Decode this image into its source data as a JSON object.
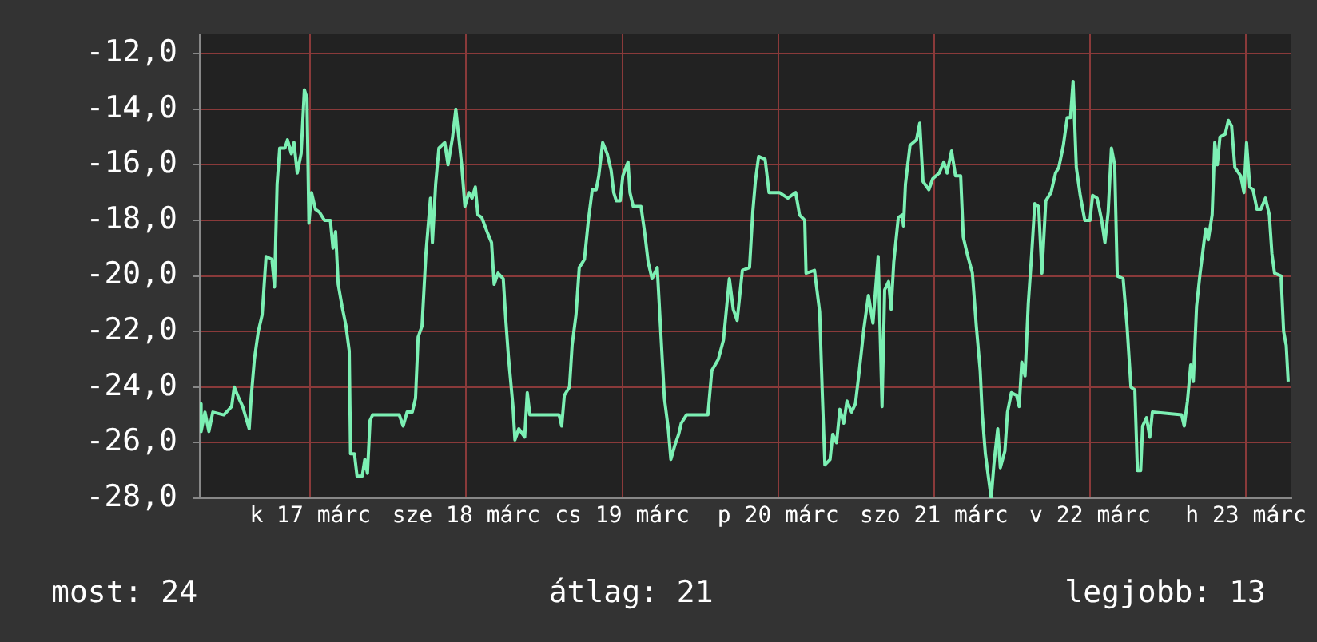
{
  "chart_data": {
    "type": "line",
    "x": [
      "--03-16T07:00",
      "--03-16T07:12",
      "--03-16T07:48",
      "--03-16T08:24",
      "--03-16T09:00",
      "--03-16T10:42",
      "--03-16T11:54",
      "--03-16T12:18",
      "--03-16T13:00",
      "--03-16T13:36",
      "--03-16T14:36",
      "--03-16T14:54",
      "--03-16T15:24",
      "--03-16T16:00",
      "--03-16T16:36",
      "--03-16T17:12",
      "--03-16T18:06",
      "--03-16T18:30",
      "--03-16T18:54",
      "--03-16T19:18",
      "--03-16T20:06",
      "--03-16T20:30",
      "--03-16T21:06",
      "--03-16T21:30",
      "--03-16T22:00",
      "--03-16T22:36",
      "--03-16T23:06",
      "--03-16T23:30",
      "--03-16T23:48",
      "--03-17T00:12",
      "--03-17T00:48",
      "--03-17T01:24",
      "--03-17T02:12",
      "--03-17T03:06",
      "--03-17T03:30",
      "--03-17T03:54",
      "--03-17T04:18",
      "--03-17T04:54",
      "--03-17T05:30",
      "--03-17T06:00",
      "--03-17T06:12",
      "--03-17T06:48",
      "--03-17T07:12",
      "--03-17T08:00",
      "--03-17T08:24",
      "--03-17T08:48",
      "--03-17T09:12",
      "--03-17T09:36",
      "--03-17T13:42",
      "--03-17T14:18",
      "--03-17T14:54",
      "--03-17T15:42",
      "--03-17T16:12",
      "--03-17T16:36",
      "--03-17T17:12",
      "--03-17T17:48",
      "--03-17T18:30",
      "--03-17T18:48",
      "--03-17T19:18",
      "--03-17T19:48",
      "--03-17T20:42",
      "--03-17T21:12",
      "--03-17T21:54",
      "--03-17T22:24",
      "--03-17T22:54",
      "--03-17T23:18",
      "--03-17T23:48",
      "--03-18T00:24",
      "--03-18T00:54",
      "--03-18T01:24",
      "--03-18T01:48",
      "--03-18T02:24",
      "--03-18T03:12",
      "--03-18T03:54",
      "--03-18T04:18",
      "--03-18T04:54",
      "--03-18T05:42",
      "--03-18T06:06",
      "--03-18T06:30",
      "--03-18T07:12",
      "--03-18T07:30",
      "--03-18T08:06",
      "--03-18T09:00",
      "--03-18T09:24",
      "--03-18T09:48",
      "--03-18T14:18",
      "--03-18T14:42",
      "--03-18T15:06",
      "--03-18T15:54",
      "--03-18T16:18",
      "--03-18T16:54",
      "--03-18T17:24",
      "--03-18T18:12",
      "--03-18T18:48",
      "--03-18T19:24",
      "--03-18T20:00",
      "--03-18T20:24",
      "--03-18T21:00",
      "--03-18T21:42",
      "--03-18T22:18",
      "--03-18T22:42",
      "--03-18T23:06",
      "--03-18T23:42",
      "--03-19T00:06",
      "--03-19T00:54",
      "--03-19T01:12",
      "--03-19T01:42",
      "--03-19T02:54",
      "--03-19T03:30",
      "--03-19T04:00",
      "--03-19T04:36",
      "--03-19T05:24",
      "--03-19T05:48",
      "--03-19T06:30",
      "--03-19T07:06",
      "--03-19T07:30",
      "--03-19T08:06",
      "--03-19T08:42",
      "--03-19T09:06",
      "--03-19T09:54",
      "--03-19T10:18",
      "--03-19T13:12",
      "--03-19T13:48",
      "--03-19T14:48",
      "--03-19T15:36",
      "--03-19T16:30",
      "--03-19T17:06",
      "--03-19T17:42",
      "--03-19T18:30",
      "--03-19T19:36",
      "--03-19T20:06",
      "--03-19T20:30",
      "--03-19T21:00",
      "--03-19T22:00",
      "--03-19T22:36",
      "--03-20T00:12",
      "--03-20T01:30",
      "--03-20T02:42",
      "--03-20T03:18",
      "--03-20T04:06",
      "--03-20T04:18",
      "--03-20T05:36",
      "--03-20T06:24",
      "--03-20T06:48",
      "--03-20T07:12",
      "--03-20T08:00",
      "--03-20T08:24",
      "--03-20T09:00",
      "--03-20T09:30",
      "--03-20T10:06",
      "--03-20T10:36",
      "--03-20T11:18",
      "--03-20T11:54",
      "--03-20T12:30",
      "--03-20T13:12",
      "--03-20T13:54",
      "--03-20T14:36",
      "--03-20T15:24",
      "--03-20T16:00",
      "--03-20T16:24",
      "--03-20T17:00",
      "--03-20T17:24",
      "--03-20T17:48",
      "--03-20T18:30",
      "--03-20T19:06",
      "--03-20T19:18",
      "--03-20T19:36",
      "--03-20T20:18",
      "--03-20T21:18",
      "--03-20T21:48",
      "--03-20T22:18",
      "--03-20T23:12",
      "--03-20T23:48",
      "--03-21T00:48",
      "--03-21T01:30",
      "--03-21T02:00",
      "--03-21T02:42",
      "--03-21T03:18",
      "--03-21T04:06",
      "--03-21T04:30",
      "--03-21T05:06",
      "--03-21T05:54",
      "--03-21T06:30",
      "--03-21T07:06",
      "--03-21T07:24",
      "--03-21T07:54",
      "--03-21T08:24",
      "--03-21T08:48",
      "--03-21T09:12",
      "--03-21T09:48",
      "--03-21T10:12",
      "--03-21T10:54",
      "--03-21T11:18",
      "--03-21T11:54",
      "--03-21T12:42",
      "--03-21T13:06",
      "--03-21T13:30",
      "--03-21T14:00",
      "--03-21T14:30",
      "--03-21T15:00",
      "--03-21T15:30",
      "--03-21T16:06",
      "--03-21T16:36",
      "--03-21T17:12",
      "--03-21T18:00",
      "--03-21T18:42",
      "--03-21T19:12",
      "--03-21T19:54",
      "--03-21T20:30",
      "--03-21T21:00",
      "--03-21T21:24",
      "--03-21T21:54",
      "--03-21T22:30",
      "--03-21T23:12",
      "--03-22T00:00",
      "--03-22T00:24",
      "--03-22T01:06",
      "--03-22T01:48",
      "--03-22T02:18",
      "--03-22T02:48",
      "--03-22T03:18",
      "--03-22T03:48",
      "--03-22T04:12",
      "--03-22T05:06",
      "--03-22T05:42",
      "--03-22T06:18",
      "--03-22T06:54",
      "--03-22T07:18",
      "--03-22T07:48",
      "--03-22T08:06",
      "--03-22T08:42",
      "--03-22T09:12",
      "--03-22T09:36",
      "--03-22T14:06",
      "--03-22T14:30",
      "--03-22T15:00",
      "--03-22T15:30",
      "--03-22T15:54",
      "--03-22T16:24",
      "--03-22T16:54",
      "--03-22T17:48",
      "--03-22T18:12",
      "--03-22T18:48",
      "--03-22T19:12",
      "--03-22T19:36",
      "--03-22T20:00",
      "--03-22T20:48",
      "--03-22T21:18",
      "--03-22T21:48",
      "--03-22T22:18",
      "--03-22T23:12",
      "--03-22T23:42",
      "--03-23T00:06",
      "--03-23T00:36",
      "--03-23T01:06",
      "--03-23T01:42",
      "--03-23T02:18",
      "--03-23T03:00",
      "--03-23T03:36",
      "--03-23T04:00",
      "--03-23T04:24",
      "--03-23T05:24",
      "--03-23T05:48",
      "--03-23T06:12",
      "--03-23T06:30"
    ],
    "series": [
      {
        "color": "#7cf0b4",
        "values": [
          -24.6,
          -25.6,
          -24.9,
          -25.6,
          -24.9,
          -25.0,
          -24.7,
          -24.0,
          -24.4,
          -24.7,
          -25.5,
          -24.4,
          -23.0,
          -22.0,
          -21.4,
          -19.3,
          -19.4,
          -20.4,
          -16.7,
          -15.4,
          -15.4,
          -15.1,
          -15.6,
          -15.2,
          -16.3,
          -15.6,
          -13.3,
          -13.6,
          -18.1,
          -17.0,
          -17.6,
          -17.7,
          -18.0,
          -18.0,
          -19.0,
          -18.4,
          -20.3,
          -21.1,
          -21.8,
          -22.7,
          -26.4,
          -26.4,
          -27.2,
          -27.2,
          -26.6,
          -27.1,
          -25.2,
          -25.0,
          -25.0,
          -25.4,
          -24.9,
          -24.9,
          -24.4,
          -22.2,
          -21.8,
          -19.2,
          -17.2,
          -18.8,
          -16.7,
          -15.4,
          -15.2,
          -16.0,
          -15.0,
          -14.0,
          -15.1,
          -16.0,
          -17.5,
          -17.0,
          -17.2,
          -16.8,
          -17.8,
          -17.9,
          -18.4,
          -18.8,
          -20.3,
          -19.9,
          -20.1,
          -21.6,
          -22.9,
          -24.7,
          -25.9,
          -25.5,
          -25.8,
          -24.2,
          -25.0,
          -25.0,
          -25.4,
          -24.3,
          -24.0,
          -22.5,
          -21.4,
          -19.7,
          -19.4,
          -18.0,
          -16.9,
          -16.9,
          -16.4,
          -15.2,
          -15.6,
          -16.2,
          -17.0,
          -17.3,
          -17.3,
          -16.4,
          -15.9,
          -17.0,
          -17.5,
          -17.5,
          -18.5,
          -19.5,
          -20.1,
          -19.7,
          -21.4,
          -24.4,
          -25.5,
          -26.6,
          -26.1,
          -25.7,
          -25.3,
          -25.0,
          -25.0,
          -25.0,
          -23.4,
          -23.0,
          -22.3,
          -20.1,
          -21.2,
          -21.6,
          -19.8,
          -19.7,
          -17.7,
          -16.6,
          -15.7,
          -15.8,
          -17.0,
          -17.0,
          -17.2,
          -17.0,
          -17.8,
          -18.0,
          -19.9,
          -19.8,
          -21.3,
          -24.2,
          -26.8,
          -26.6,
          -25.7,
          -26.0,
          -24.8,
          -25.3,
          -24.5,
          -24.9,
          -24.6,
          -23.4,
          -21.9,
          -20.7,
          -21.7,
          -19.3,
          -24.7,
          -20.5,
          -20.2,
          -21.2,
          -19.5,
          -17.9,
          -17.8,
          -18.2,
          -16.7,
          -15.3,
          -15.1,
          -14.5,
          -16.6,
          -16.9,
          -16.5,
          -16.3,
          -15.9,
          -16.3,
          -15.5,
          -16.4,
          -16.4,
          -18.6,
          -19.2,
          -19.9,
          -21.8,
          -23.4,
          -24.9,
          -26.4,
          -27.3,
          -28.0,
          -26.8,
          -25.5,
          -26.9,
          -26.3,
          -24.9,
          -24.2,
          -24.3,
          -24.7,
          -23.1,
          -23.6,
          -21.0,
          -19.3,
          -17.4,
          -17.5,
          -19.9,
          -17.3,
          -17.0,
          -16.3,
          -16.1,
          -15.3,
          -14.3,
          -14.3,
          -13.0,
          -16.1,
          -17.1,
          -18.0,
          -18.0,
          -17.1,
          -17.2,
          -18.0,
          -18.8,
          -17.7,
          -15.4,
          -16.0,
          -20.0,
          -20.1,
          -21.8,
          -24.0,
          -24.1,
          -27.0,
          -27.0,
          -25.4,
          -25.1,
          -25.8,
          -24.9,
          -25.0,
          -25.4,
          -24.5,
          -23.2,
          -23.8,
          -21.1,
          -20.0,
          -18.3,
          -18.7,
          -17.8,
          -15.2,
          -16.0,
          -15.0,
          -14.9,
          -14.4,
          -14.6,
          -16.1,
          -16.4,
          -17.0,
          -15.2,
          -16.8,
          -16.9,
          -17.6,
          -17.6,
          -17.2,
          -17.8,
          -19.2,
          -19.9,
          -20.0,
          -22.0,
          -22.5,
          -23.8
        ]
      }
    ],
    "xlim": [
      "--03-16T07:00",
      "--03-23T07:00"
    ],
    "xticks": [
      {
        "value": "--03-17",
        "label": "k 17 márc"
      },
      {
        "value": "--03-18",
        "label": "sze 18 márc"
      },
      {
        "value": "--03-19",
        "label": "cs 19 márc"
      },
      {
        "value": "--03-20",
        "label": "p 20 márc"
      },
      {
        "value": "--03-21",
        "label": "szo 21 márc"
      },
      {
        "value": "--03-22",
        "label": "v 22 márc"
      },
      {
        "value": "--03-23",
        "label": "h 23 márc"
      }
    ],
    "ylim": [
      -28,
      -11.3
    ],
    "yticks": [
      {
        "value": -28,
        "label": "-28,0"
      },
      {
        "value": -26,
        "label": "-26,0"
      },
      {
        "value": -24,
        "label": "-24,0"
      },
      {
        "value": -22,
        "label": "-22,0"
      },
      {
        "value": -20,
        "label": "-20,0"
      },
      {
        "value": -18,
        "label": "-18,0"
      },
      {
        "value": -16,
        "label": "-16,0"
      },
      {
        "value": -14,
        "label": "-14,0"
      },
      {
        "value": -12,
        "label": "-12,0"
      }
    ],
    "grid": true,
    "marker": "none",
    "line_style": "solid",
    "annotations": [
      "most: 24",
      "átlag: 21",
      "legjobb: 13"
    ]
  }
}
